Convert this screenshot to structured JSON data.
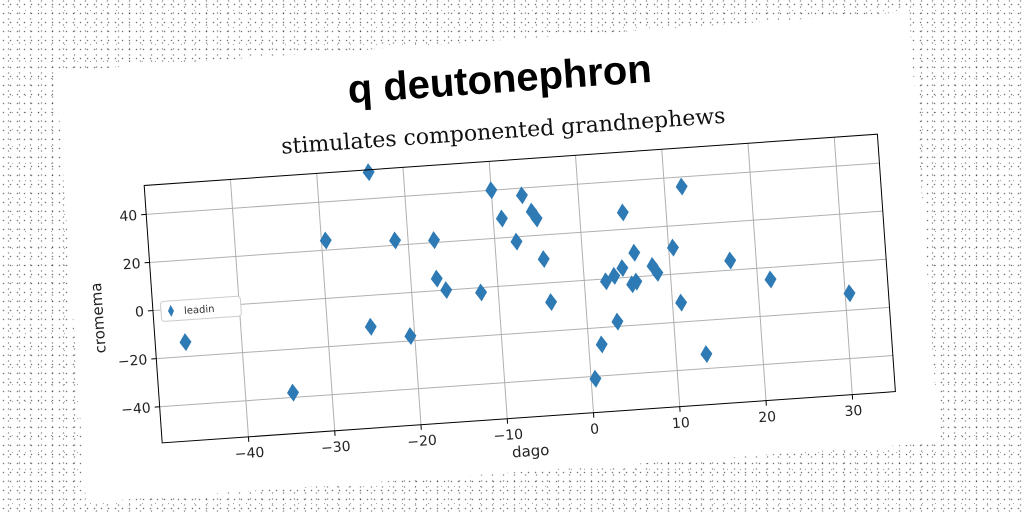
{
  "title": "q deutonephron",
  "chart_data": {
    "type": "scatter",
    "title": "stimulates componented grandnephews",
    "xlabel": "dago",
    "ylabel": "cromema",
    "xlim": [
      -50,
      35
    ],
    "ylim": [
      -55,
      52
    ],
    "xticks": [
      -40,
      -30,
      -20,
      -10,
      0,
      10,
      20,
      30
    ],
    "yticks": [
      -40,
      -20,
      0,
      20,
      40
    ],
    "grid": true,
    "legend_position": "center-left",
    "marker": "thin-diamond",
    "color": "#2e7ab5",
    "series": [
      {
        "name": "leadin",
        "points": [
          [
            -46.5,
            -14
          ],
          [
            -34.5,
            -38
          ],
          [
            -29.5,
            24
          ],
          [
            -25,
            -13
          ],
          [
            -24,
            51
          ],
          [
            -21.5,
            22
          ],
          [
            -20.5,
            -18
          ],
          [
            -17,
            21
          ],
          [
            -17,
            5
          ],
          [
            -16,
            0
          ],
          [
            -12,
            -2
          ],
          [
            -10,
            40
          ],
          [
            -9,
            28
          ],
          [
            -7.5,
            18
          ],
          [
            -6.5,
            37
          ],
          [
            -5.5,
            30
          ],
          [
            -5,
            27
          ],
          [
            -4.5,
            10
          ],
          [
            -4,
            -8
          ],
          [
            0.5,
            -41
          ],
          [
            1.5,
            -27
          ],
          [
            2.5,
            -1
          ],
          [
            3.5,
            1
          ],
          [
            3.5,
            -18
          ],
          [
            4.5,
            4
          ],
          [
            5,
            27
          ],
          [
            5.5,
            -3
          ],
          [
            6,
            10
          ],
          [
            6,
            -2
          ],
          [
            8,
            4
          ],
          [
            8.5,
            1
          ],
          [
            10.5,
            11
          ],
          [
            11,
            -12
          ],
          [
            12,
            36
          ],
          [
            13.5,
            -34
          ],
          [
            17,
            4
          ],
          [
            21.5,
            -5
          ],
          [
            30.5,
            -13
          ]
        ]
      }
    ]
  }
}
